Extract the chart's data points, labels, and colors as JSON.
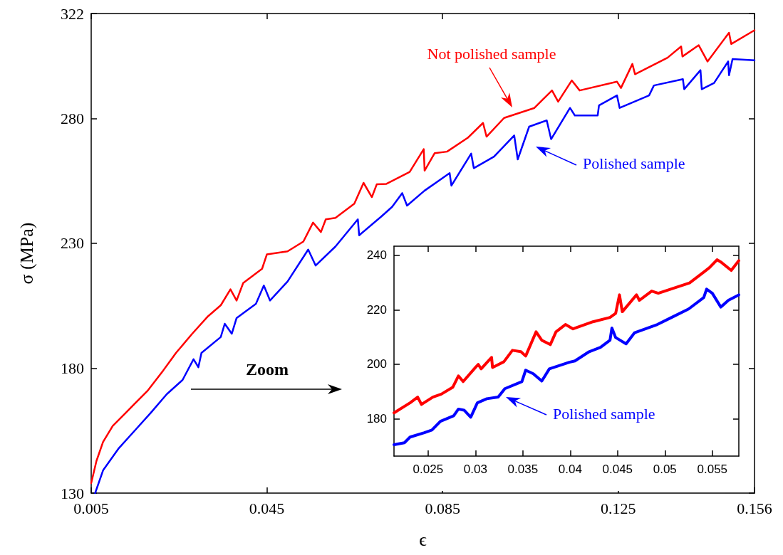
{
  "chart_data": [
    {
      "type": "line",
      "xlabel": "ϵ",
      "ylabel": "σ (MPa)",
      "xlim": [
        0.005,
        0.156
      ],
      "ylim": [
        130,
        322
      ],
      "xticks": [
        0.005,
        0.045,
        0.085,
        0.125,
        0.156
      ],
      "yticks": [
        130,
        180,
        230,
        280,
        322
      ],
      "grid": false,
      "marker": "none",
      "line_style": "solid",
      "annotations": [
        "Not polished sample",
        "Polished sample",
        "Zoom"
      ],
      "series": [
        {
          "color": "#ff0000",
          "x": [
            0.005,
            0.0062,
            0.0077,
            0.0099,
            0.0128,
            0.0149,
            0.0178,
            0.0214,
            0.0243,
            0.028,
            0.0316,
            0.0345,
            0.0367,
            0.0381,
            0.0396,
            0.0439,
            0.045,
            0.0497,
            0.0533,
            0.0555,
            0.0573,
            0.0584,
            0.0606,
            0.0649,
            0.067,
            0.0689,
            0.07,
            0.0722,
            0.0775,
            0.0807,
            0.0809,
            0.0832,
            0.086,
            0.0907,
            0.0942,
            0.095,
            0.099,
            0.1059,
            0.1099,
            0.1113,
            0.1144,
            0.1162,
            0.1247,
            0.1256,
            0.1282,
            0.1288,
            0.1362,
            0.1393,
            0.1396,
            0.1433,
            0.1453,
            0.1502,
            0.1507,
            0.156
          ],
          "values": [
            134,
            142.9,
            150.5,
            156.9,
            162,
            165.8,
            170.9,
            179.1,
            186.1,
            193.8,
            200.8,
            205.2,
            211.6,
            207.1,
            214.1,
            219.8,
            225.6,
            226.8,
            230.7,
            238.3,
            234.5,
            239.6,
            240.2,
            245.9,
            254.2,
            248.5,
            253.6,
            253.8,
            258.6,
            267.7,
            259.1,
            266.1,
            266.7,
            272.2,
            278.2,
            272.7,
            280.2,
            284.2,
            291.2,
            286.7,
            295.2,
            291.2,
            294.7,
            292.2,
            301.8,
            297.7,
            304.3,
            308.8,
            304.8,
            309.3,
            302.8,
            314.3,
            309.8,
            315.3
          ]
        },
        {
          "color": "#0000ff",
          "x": [
            0.0059,
            0.0077,
            0.0113,
            0.0149,
            0.0185,
            0.0222,
            0.0258,
            0.0283,
            0.0294,
            0.0301,
            0.0345,
            0.0354,
            0.037,
            0.0381,
            0.0425,
            0.0443,
            0.0457,
            0.0497,
            0.0544,
            0.0561,
            0.0606,
            0.0657,
            0.066,
            0.0711,
            0.0735,
            0.0758,
            0.0769,
            0.0809,
            0.0866,
            0.087,
            0.0915,
            0.0921,
            0.0967,
            0.1013,
            0.1021,
            0.1047,
            0.1087,
            0.1097,
            0.114,
            0.1151,
            0.1203,
            0.1206,
            0.1247,
            0.1253,
            0.132,
            0.1331,
            0.1397,
            0.14,
            0.1437,
            0.144,
            0.1468,
            0.15,
            0.1502,
            0.151,
            0.156
          ],
          "values": [
            130,
            139.1,
            148,
            155,
            162,
            169.6,
            175.3,
            183.6,
            180.4,
            186.1,
            192.5,
            197.8,
            193.8,
            200.1,
            205.8,
            213.1,
            207.1,
            214.7,
            227.5,
            221.1,
            228.7,
            239.6,
            233.2,
            240.8,
            244.6,
            250.1,
            245.1,
            251.1,
            258.1,
            253.1,
            265.9,
            260.1,
            264.7,
            273.2,
            263.6,
            276.7,
            279.2,
            271.7,
            284.2,
            281.2,
            281.2,
            285.2,
            289.2,
            284.2,
            289.2,
            293.2,
            295.7,
            291.7,
            299.3,
            291.7,
            294.2,
            302.8,
            297.3,
            303.8,
            303.3
          ]
        }
      ]
    },
    {
      "type": "line",
      "xlim": [
        0.0214,
        0.0578
      ],
      "ylim": [
        166.2,
        243.4
      ],
      "xticks": [
        0.025,
        0.03,
        0.035,
        0.04,
        0.045,
        0.05,
        0.055
      ],
      "yticks": [
        180,
        200,
        220,
        240
      ],
      "grid": false,
      "marker": "none",
      "line_style": "solid",
      "annotations": [
        "Polished sample"
      ],
      "series": [
        {
          "color": "#ff0000",
          "x": [
            0.0214,
            0.0231,
            0.0239,
            0.0243,
            0.0255,
            0.0264,
            0.0276,
            0.0282,
            0.0287,
            0.03,
            0.0303,
            0.0306,
            0.0317,
            0.0318,
            0.033,
            0.0339,
            0.0348,
            0.0353,
            0.0364,
            0.037,
            0.0379,
            0.0385,
            0.0395,
            0.0403,
            0.0424,
            0.0442,
            0.0448,
            0.0452,
            0.0455,
            0.047,
            0.0473,
            0.0486,
            0.0493,
            0.0526,
            0.0541,
            0.0547,
            0.0555,
            0.0559,
            0.057,
            0.0578
          ],
          "values": [
            182.1,
            185.8,
            187.9,
            185.2,
            187.9,
            189,
            191.5,
            195.7,
            193.6,
            198.8,
            199.9,
            198.3,
            202.5,
            198.8,
            200.9,
            205.1,
            204.6,
            203,
            211.9,
            208.8,
            207.2,
            211.9,
            214.6,
            213,
            215.6,
            217.2,
            218.7,
            225.5,
            219.3,
            225.5,
            223.5,
            226.9,
            226.1,
            229.9,
            233.9,
            235.5,
            238.4,
            237.6,
            234.5,
            238.1
          ]
        },
        {
          "color": "#0000ff",
          "x": [
            0.0214,
            0.0225,
            0.0231,
            0.0246,
            0.0254,
            0.0263,
            0.0277,
            0.0282,
            0.0288,
            0.0295,
            0.0302,
            0.0312,
            0.0324,
            0.0331,
            0.0349,
            0.0353,
            0.0361,
            0.037,
            0.0378,
            0.0399,
            0.0405,
            0.042,
            0.0432,
            0.0442,
            0.0444,
            0.0448,
            0.0459,
            0.0468,
            0.0492,
            0.0507,
            0.0525,
            0.0541,
            0.0544,
            0.055,
            0.0559,
            0.0567,
            0.0578
          ],
          "values": [
            170.4,
            171.1,
            173.2,
            174.8,
            175.8,
            179,
            181,
            183.5,
            183.1,
            180.5,
            185.8,
            187.3,
            187.9,
            191,
            193.6,
            197.8,
            196.5,
            193.8,
            198.3,
            200.7,
            201.2,
            204.6,
            206.2,
            208.8,
            213.3,
            209.8,
            207.5,
            211.6,
            214.6,
            217.2,
            220.3,
            224.5,
            227.6,
            226.1,
            221,
            223.5,
            225.5
          ]
        }
      ]
    }
  ]
}
